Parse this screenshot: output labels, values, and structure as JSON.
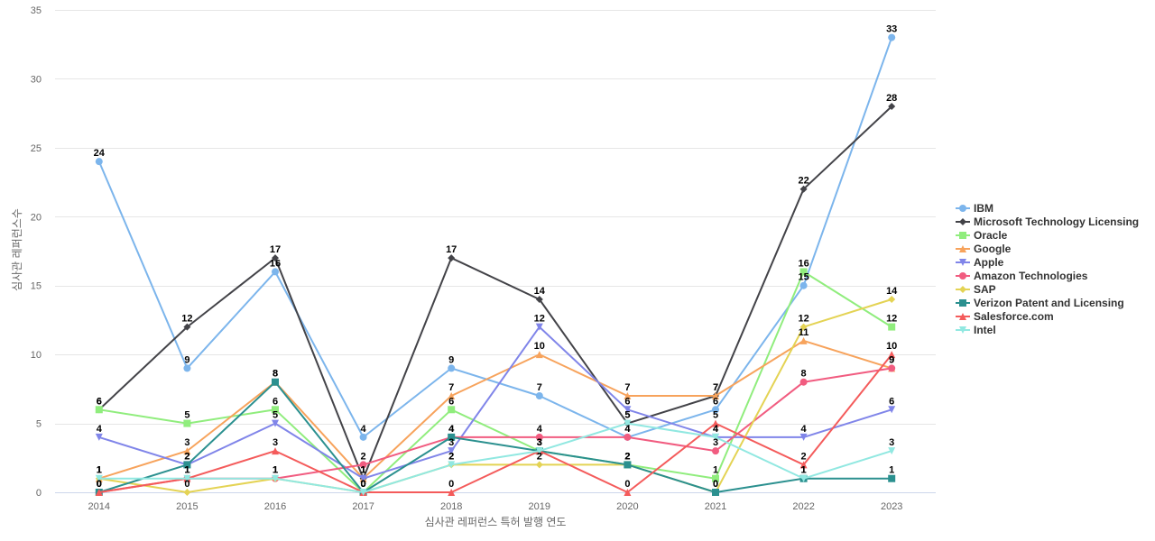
{
  "chart_data": {
    "type": "line",
    "title": "",
    "xlabel": "심사관 레퍼런스 특허 발행 연도",
    "ylabel": "심사관 레퍼런스수",
    "ylim": [
      0,
      35
    ],
    "yticks": [
      0,
      5,
      10,
      15,
      20,
      25,
      30,
      35
    ],
    "x": [
      2014,
      2015,
      2016,
      2017,
      2018,
      2019,
      2020,
      2021,
      2022,
      2023
    ],
    "grid": "horizontal",
    "legend_position": "right",
    "series": [
      {
        "name": "IBM",
        "color": "#7cb5ec",
        "marker": "circle",
        "values": [
          24,
          9,
          16,
          4,
          9,
          7,
          4,
          6,
          15,
          33
        ]
      },
      {
        "name": "Microsoft Technology Licensing",
        "color": "#434348",
        "marker": "diamond",
        "values": [
          6,
          12,
          17,
          1,
          17,
          14,
          5,
          7,
          22,
          28
        ]
      },
      {
        "name": "Oracle",
        "color": "#90ed7d",
        "marker": "square",
        "values": [
          6,
          5,
          6,
          0,
          6,
          3,
          2,
          1,
          16,
          12
        ]
      },
      {
        "name": "Google",
        "color": "#f7a35c",
        "marker": "triangle",
        "values": [
          1,
          3,
          8,
          1,
          7,
          10,
          7,
          7,
          11,
          9
        ]
      },
      {
        "name": "Apple",
        "color": "#8085e9",
        "marker": "triangle-down",
        "values": [
          4,
          2,
          5,
          1,
          3,
          12,
          6,
          4,
          4,
          6
        ]
      },
      {
        "name": "Amazon Technologies",
        "color": "#f15c80",
        "marker": "circle",
        "values": [
          0,
          1,
          1,
          2,
          4,
          4,
          4,
          3,
          8,
          9
        ]
      },
      {
        "name": "SAP",
        "color": "#e4d354",
        "marker": "diamond",
        "values": [
          1,
          0,
          1,
          0,
          2,
          2,
          2,
          0,
          12,
          14
        ]
      },
      {
        "name": "Verizon Patent and Licensing",
        "color": "#2b908f",
        "marker": "square",
        "values": [
          0,
          2,
          8,
          0,
          4,
          3,
          2,
          0,
          1,
          1
        ]
      },
      {
        "name": "Salesforce.com",
        "color": "#f45b5b",
        "marker": "triangle",
        "values": [
          0,
          1,
          3,
          0,
          0,
          3,
          0,
          5,
          2,
          10
        ]
      },
      {
        "name": "Intel",
        "color": "#91e8e1",
        "marker": "triangle-down",
        "values": [
          1,
          1,
          1,
          0,
          2,
          3,
          5,
          4,
          1,
          3
        ]
      }
    ]
  }
}
